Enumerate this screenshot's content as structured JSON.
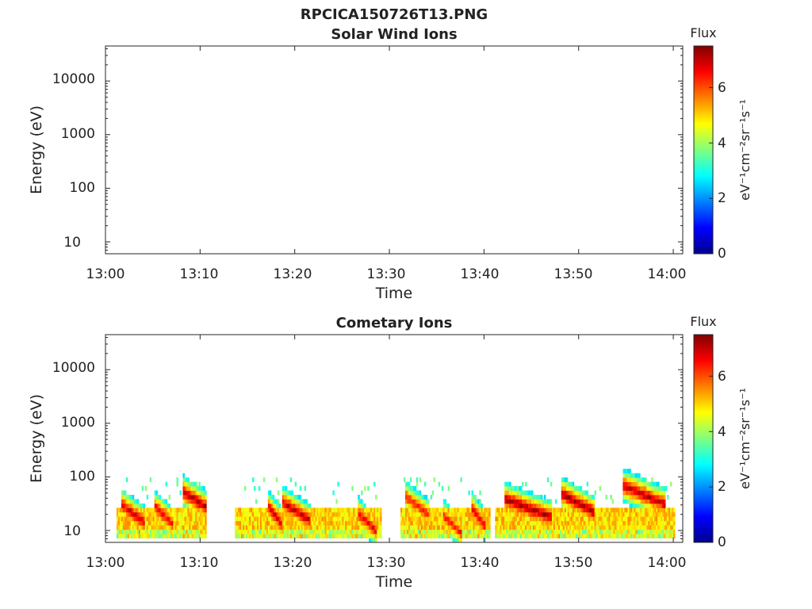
{
  "figure_title": "RPCICA150726T13.PNG",
  "colormap": [
    "#00008f",
    "#0000ff",
    "#0080ff",
    "#00ffff",
    "#80ff80",
    "#ffff00",
    "#ff8000",
    "#ff0000",
    "#800000"
  ],
  "chart_data": [
    {
      "type": "heatmap",
      "title": "Solar Wind Ions",
      "xlabel": "Time",
      "ylabel": "Energy (eV)",
      "y_scale": "log",
      "ylim": [
        6,
        45000
      ],
      "xlim": [
        "13:00",
        "14:01"
      ],
      "x_ticks": [
        "13:00",
        "13:10",
        "13:20",
        "13:30",
        "13:40",
        "13:50",
        "14:00"
      ],
      "y_ticks": [
        "10",
        "100",
        "1000",
        "10000"
      ],
      "colorbar": {
        "label": "Flux",
        "units": "eV⁻¹cm⁻²sr⁻¹s⁻¹",
        "range": [
          0,
          7.5
        ],
        "ticks": [
          "0",
          "2",
          "4",
          "6"
        ]
      },
      "events": []
    },
    {
      "type": "heatmap",
      "title": "Cometary Ions",
      "xlabel": "Time",
      "ylabel": "Energy (eV)",
      "y_scale": "log",
      "ylim": [
        6,
        45000
      ],
      "xlim": [
        "13:00",
        "14:01"
      ],
      "x_ticks": [
        "13:00",
        "13:10",
        "13:20",
        "13:30",
        "13:40",
        "13:50",
        "14:00"
      ],
      "y_ticks": [
        "10",
        "100",
        "1000",
        "10000"
      ],
      "colorbar": {
        "label": "Flux",
        "units": "eV⁻¹cm⁻²sr⁻¹s⁻¹",
        "range": [
          0,
          7.5
        ],
        "ticks": [
          "0",
          "2",
          "4",
          "6"
        ]
      },
      "background_band": {
        "energy_range_eV": [
          7,
          25
        ],
        "flux": 5.0
      },
      "events": [
        {
          "start": "13:01.5",
          "end": "13:04.0",
          "peak_energy_eV": 32,
          "flux": 7.0
        },
        {
          "start": "13:05.0",
          "end": "13:07.0",
          "peak_energy_eV": 30,
          "flux": 6.8
        },
        {
          "start": "13:08.0",
          "end": "13:11.0",
          "peak_energy_eV": 55,
          "flux": 7.2
        },
        {
          "start": "13:17.0",
          "end": "13:18.5",
          "peak_energy_eV": 30,
          "flux": 7.0
        },
        {
          "start": "13:18.5",
          "end": "13:21.5",
          "peak_energy_eV": 35,
          "flux": 7.1
        },
        {
          "start": "13:26.5",
          "end": "13:28.5",
          "peak_energy_eV": 22,
          "flux": 6.8
        },
        {
          "start": "13:31.5",
          "end": "13:34.0",
          "peak_energy_eV": 45,
          "flux": 6.5
        },
        {
          "start": "13:35.5",
          "end": "13:37.5",
          "peak_energy_eV": 20,
          "flux": 6.6
        },
        {
          "start": "13:38.5",
          "end": "13:40.0",
          "peak_energy_eV": 28,
          "flux": 6.9
        },
        {
          "start": "13:42.0",
          "end": "13:47.0",
          "peak_energy_eV": 40,
          "flux": 7.3
        },
        {
          "start": "13:48.0",
          "end": "13:51.5",
          "peak_energy_eV": 50,
          "flux": 7.3
        },
        {
          "start": "13:54.5",
          "end": "13:59.0",
          "peak_energy_eV": 70,
          "flux": 7.2
        }
      ]
    }
  ]
}
